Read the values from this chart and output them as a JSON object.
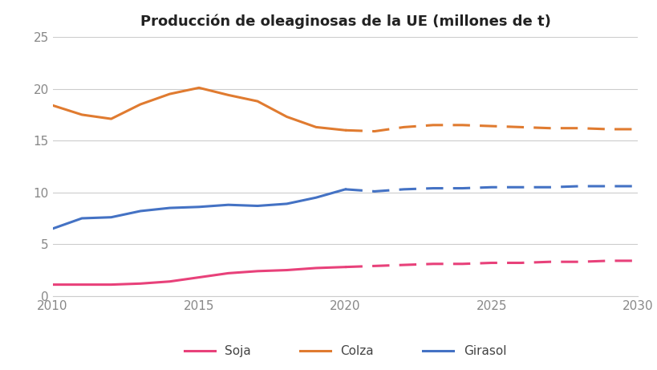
{
  "title": "Producción de oleaginosas de la UE (millones de t)",
  "background_color": "#f5f5f5",
  "xlim": [
    2010,
    2030
  ],
  "ylim": [
    0,
    25
  ],
  "yticks": [
    0,
    5,
    10,
    15,
    20,
    25
  ],
  "xticks": [
    2010,
    2015,
    2020,
    2025,
    2030
  ],
  "colza_solid_x": [
    2010,
    2011,
    2012,
    2013,
    2014,
    2015,
    2016,
    2017,
    2018,
    2019,
    2020
  ],
  "colza_solid_y": [
    18.4,
    17.5,
    17.1,
    18.5,
    19.5,
    20.1,
    19.4,
    18.8,
    17.3,
    16.3,
    16.0
  ],
  "colza_dash_x": [
    2020,
    2021,
    2022,
    2023,
    2024,
    2025,
    2026,
    2027,
    2028,
    2029,
    2030
  ],
  "colza_dash_y": [
    16.0,
    15.9,
    16.3,
    16.5,
    16.5,
    16.4,
    16.3,
    16.2,
    16.2,
    16.1,
    16.1
  ],
  "colza_color": "#E07B30",
  "girasol_solid_x": [
    2010,
    2011,
    2012,
    2013,
    2014,
    2015,
    2016,
    2017,
    2018,
    2019,
    2020
  ],
  "girasol_solid_y": [
    6.5,
    7.5,
    7.6,
    8.2,
    8.5,
    8.6,
    8.8,
    8.7,
    8.9,
    9.5,
    10.3
  ],
  "girasol_dash_x": [
    2020,
    2021,
    2022,
    2023,
    2024,
    2025,
    2026,
    2027,
    2028,
    2029,
    2030
  ],
  "girasol_dash_y": [
    10.3,
    10.1,
    10.3,
    10.4,
    10.4,
    10.5,
    10.5,
    10.5,
    10.6,
    10.6,
    10.6
  ],
  "girasol_color": "#4472C4",
  "soja_solid_x": [
    2010,
    2011,
    2012,
    2013,
    2014,
    2015,
    2016,
    2017,
    2018,
    2019,
    2020
  ],
  "soja_solid_y": [
    1.1,
    1.1,
    1.1,
    1.2,
    1.4,
    1.8,
    2.2,
    2.4,
    2.5,
    2.7,
    2.8
  ],
  "soja_dash_x": [
    2020,
    2021,
    2022,
    2023,
    2024,
    2025,
    2026,
    2027,
    2028,
    2029,
    2030
  ],
  "soja_dash_y": [
    2.8,
    2.9,
    3.0,
    3.1,
    3.1,
    3.2,
    3.2,
    3.3,
    3.3,
    3.4,
    3.4
  ],
  "soja_color": "#E8417A",
  "legend_labels": [
    "Soja",
    "Colza",
    "Girasol"
  ],
  "line_width": 2.2,
  "tick_label_color": "#888888",
  "tick_fontsize": 11,
  "title_fontsize": 13,
  "grid_color": "#cccccc"
}
